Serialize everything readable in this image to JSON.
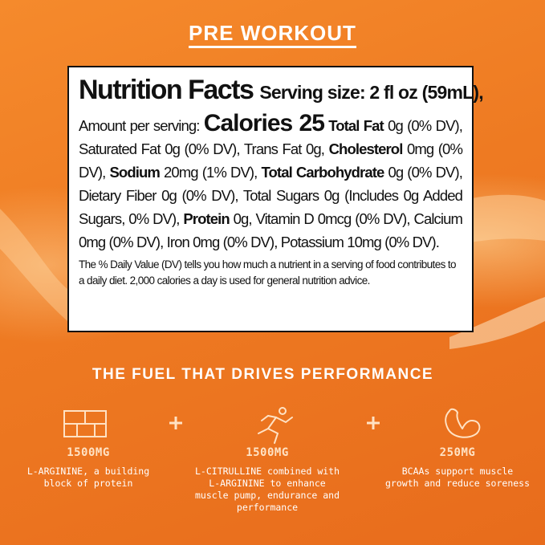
{
  "header": {
    "title": "PRE WORKOUT"
  },
  "nutrition": {
    "title": "Nutrition Facts",
    "serving": "Serving size: 2 fl oz (59mL),",
    "amount_label": "Amount per serving:",
    "calories": "Calories 25",
    "runs": [
      {
        "text": " Total Fat",
        "bold": true
      },
      {
        "text": " 0g (0% DV), Saturated Fat 0g (0% DV), Trans Fat 0g, ",
        "bold": false
      },
      {
        "text": "Cholesterol",
        "bold": true
      },
      {
        "text": " 0mg (0% DV), ",
        "bold": false
      },
      {
        "text": "Sodium",
        "bold": true
      },
      {
        "text": " 20mg (1% DV), ",
        "bold": false
      },
      {
        "text": "Total Carbohydrate",
        "bold": true
      },
      {
        "text": " 0g (0% DV), Dietary Fiber 0g (0% DV), Total Sugars 0g (Includes 0g Added Sugars, 0% DV), ",
        "bold": false
      },
      {
        "text": "Protein",
        "bold": true
      },
      {
        "text": " 0g, Vitamin D 0mcg (0% DV), Calcium 0mg (0% DV), Iron 0mg (0% DV), Potassium 10mg (0% DV).",
        "bold": false
      }
    ],
    "footnote": "The % Daily Value (DV) tells you how much a nutrient in a serving of food contributes to a daily diet. 2,000 calories a day is used for general nutrition advice."
  },
  "tagline": "THE FUEL THAT DRIVES PERFORMANCE",
  "features": [
    {
      "amount": "1500MG",
      "description": "L-ARGININE, a building block of protein"
    },
    {
      "amount": "1500MG",
      "description": "L-CITRULLINE combined with L-ARGININE to enhance muscle pump, endurance and performance"
    },
    {
      "amount": "250MG",
      "description": "BCAAs support muscle growth and reduce soreness"
    }
  ]
}
